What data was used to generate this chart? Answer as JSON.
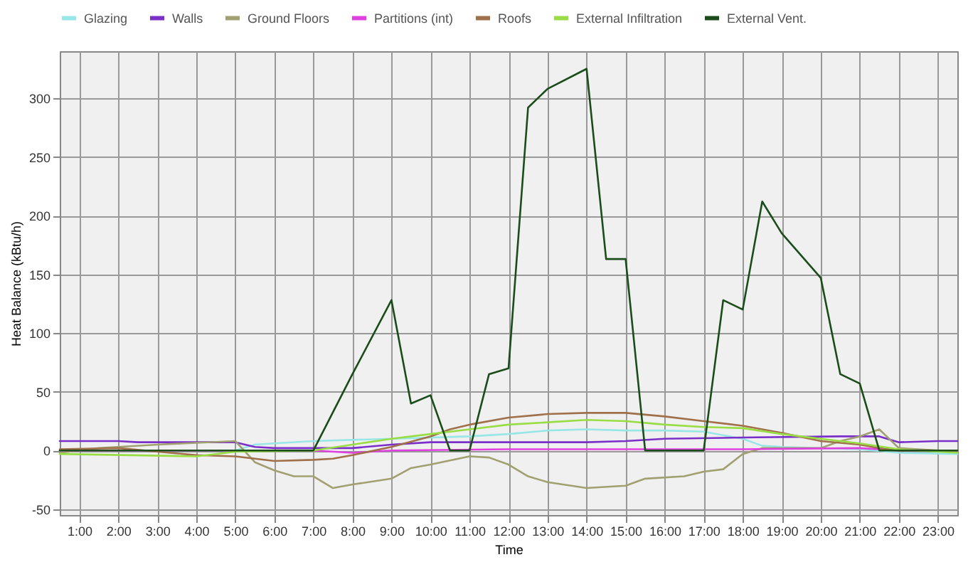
{
  "chart_data": {
    "type": "line",
    "xlabel": "Time",
    "ylabel": "Heat Balance (kBtu/h)",
    "xlim": [
      0.5,
      23.5
    ],
    "ylim": [
      -55,
      340
    ],
    "xticks": [
      {
        "value": 1,
        "label": "1:00"
      },
      {
        "value": 2,
        "label": "2:00"
      },
      {
        "value": 3,
        "label": "3:00"
      },
      {
        "value": 4,
        "label": "4:00"
      },
      {
        "value": 5,
        "label": "5:00"
      },
      {
        "value": 6,
        "label": "6:00"
      },
      {
        "value": 7,
        "label": "7:00"
      },
      {
        "value": 8,
        "label": "8:00"
      },
      {
        "value": 9,
        "label": "9:00"
      },
      {
        "value": 10,
        "label": "10:00"
      },
      {
        "value": 11,
        "label": "11:00"
      },
      {
        "value": 12,
        "label": "12:00"
      },
      {
        "value": 13,
        "label": "13:00"
      },
      {
        "value": 14,
        "label": "14:00"
      },
      {
        "value": 15,
        "label": "15:00"
      },
      {
        "value": 16,
        "label": "16:00"
      },
      {
        "value": 17,
        "label": "17:00"
      },
      {
        "value": 18,
        "label": "18:00"
      },
      {
        "value": 19,
        "label": "19:00"
      },
      {
        "value": 20,
        "label": "20:00"
      },
      {
        "value": 21,
        "label": "21:00"
      },
      {
        "value": 22,
        "label": "22:00"
      },
      {
        "value": 23,
        "label": "23:00"
      }
    ],
    "yticks": [
      -50,
      0,
      50,
      100,
      150,
      200,
      250,
      300
    ],
    "grid": true,
    "legend": "top left",
    "marker": "none",
    "line_style": "solid",
    "series": [
      {
        "name": "Glazing",
        "color": "#99e6e6",
        "x": [
          0.5,
          5,
          5.5,
          6,
          7,
          9,
          11,
          12,
          13,
          14,
          15,
          16,
          17,
          18,
          18.5,
          19,
          21,
          22,
          23.5
        ],
        "values": [
          0,
          0,
          5,
          6,
          8,
          10,
          12,
          14,
          17,
          18,
          17,
          17,
          16,
          10,
          4,
          3,
          1,
          -2,
          -3
        ]
      },
      {
        "name": "Walls",
        "color": "#7b2fc9",
        "x": [
          0.5,
          2,
          2.5,
          5,
          5.5,
          6,
          8,
          9,
          10,
          14,
          15,
          16,
          18,
          20.5,
          21.5,
          22,
          23,
          23.5
        ],
        "values": [
          8,
          8,
          7,
          7,
          3,
          2,
          2,
          5,
          7,
          7,
          8,
          10,
          11,
          12,
          12,
          7,
          8,
          8
        ]
      },
      {
        "name": "Ground Floors",
        "color": "#a0a070",
        "x": [
          0.5,
          1.5,
          2,
          3,
          5,
          5.5,
          6,
          6.5,
          7,
          7.5,
          8,
          9,
          9.5,
          10,
          11,
          11.5,
          12,
          12.5,
          13,
          14,
          15,
          15.5,
          16.5,
          17,
          17.5,
          18,
          18.5,
          20,
          20.5,
          21,
          21.5,
          22,
          23.5
        ],
        "values": [
          -2,
          2,
          3,
          5,
          8,
          -10,
          -17,
          -22,
          -22,
          -32,
          -29,
          -24,
          -15,
          -12,
          -5,
          -6,
          -12,
          -22,
          -27,
          -32,
          -30,
          -24,
          -22,
          -18,
          -16,
          -3,
          2,
          2,
          8,
          12,
          18,
          2,
          -1
        ]
      },
      {
        "name": "Partitions (int)",
        "color": "#e040e0",
        "x": [
          0.5,
          5,
          7,
          8,
          9,
          12,
          18,
          21,
          22,
          23.5
        ],
        "values": [
          0,
          0,
          0,
          -2,
          0,
          1,
          1,
          2,
          0,
          0
        ]
      },
      {
        "name": "Roofs",
        "color": "#a0704a",
        "x": [
          0.5,
          2,
          4,
          5,
          6,
          7,
          7.5,
          8,
          9,
          10,
          10.5,
          11,
          12,
          13,
          14,
          15,
          16,
          17,
          18,
          19,
          20,
          21,
          21.5,
          22,
          23.5
        ],
        "values": [
          1,
          2,
          -4,
          -5,
          -9,
          -8,
          -7,
          -4,
          3,
          12,
          18,
          22,
          28,
          31,
          32,
          32,
          29,
          25,
          21,
          15,
          8,
          5,
          2,
          0,
          0
        ]
      },
      {
        "name": "External Infiltration",
        "color": "#99dd44",
        "x": [
          0.5,
          4,
          4.5,
          5,
          7,
          8,
          9,
          10,
          11,
          12,
          13,
          14,
          15,
          16,
          17,
          18,
          19,
          20,
          21,
          22,
          23.5
        ],
        "values": [
          -3,
          -5,
          -3,
          -1,
          0,
          5,
          10,
          14,
          18,
          22,
          24,
          26,
          25,
          22,
          20,
          19,
          14,
          10,
          6,
          1,
          -2
        ]
      },
      {
        "name": "External Vent.",
        "color": "#1a4d1a",
        "x": [
          0.5,
          7,
          8,
          9,
          9.5,
          10,
          10.5,
          11,
          11.5,
          12,
          12.5,
          13,
          14,
          14.5,
          15,
          15.5,
          17,
          17.5,
          18,
          18.5,
          19,
          20,
          20.5,
          21,
          21.5,
          23.5
        ],
        "values": [
          0,
          0,
          65,
          128,
          40,
          47,
          0,
          0,
          65,
          70,
          292,
          308,
          325,
          163,
          163,
          0,
          0,
          128,
          120,
          212,
          185,
          147,
          65,
          57,
          0,
          0
        ]
      }
    ]
  }
}
